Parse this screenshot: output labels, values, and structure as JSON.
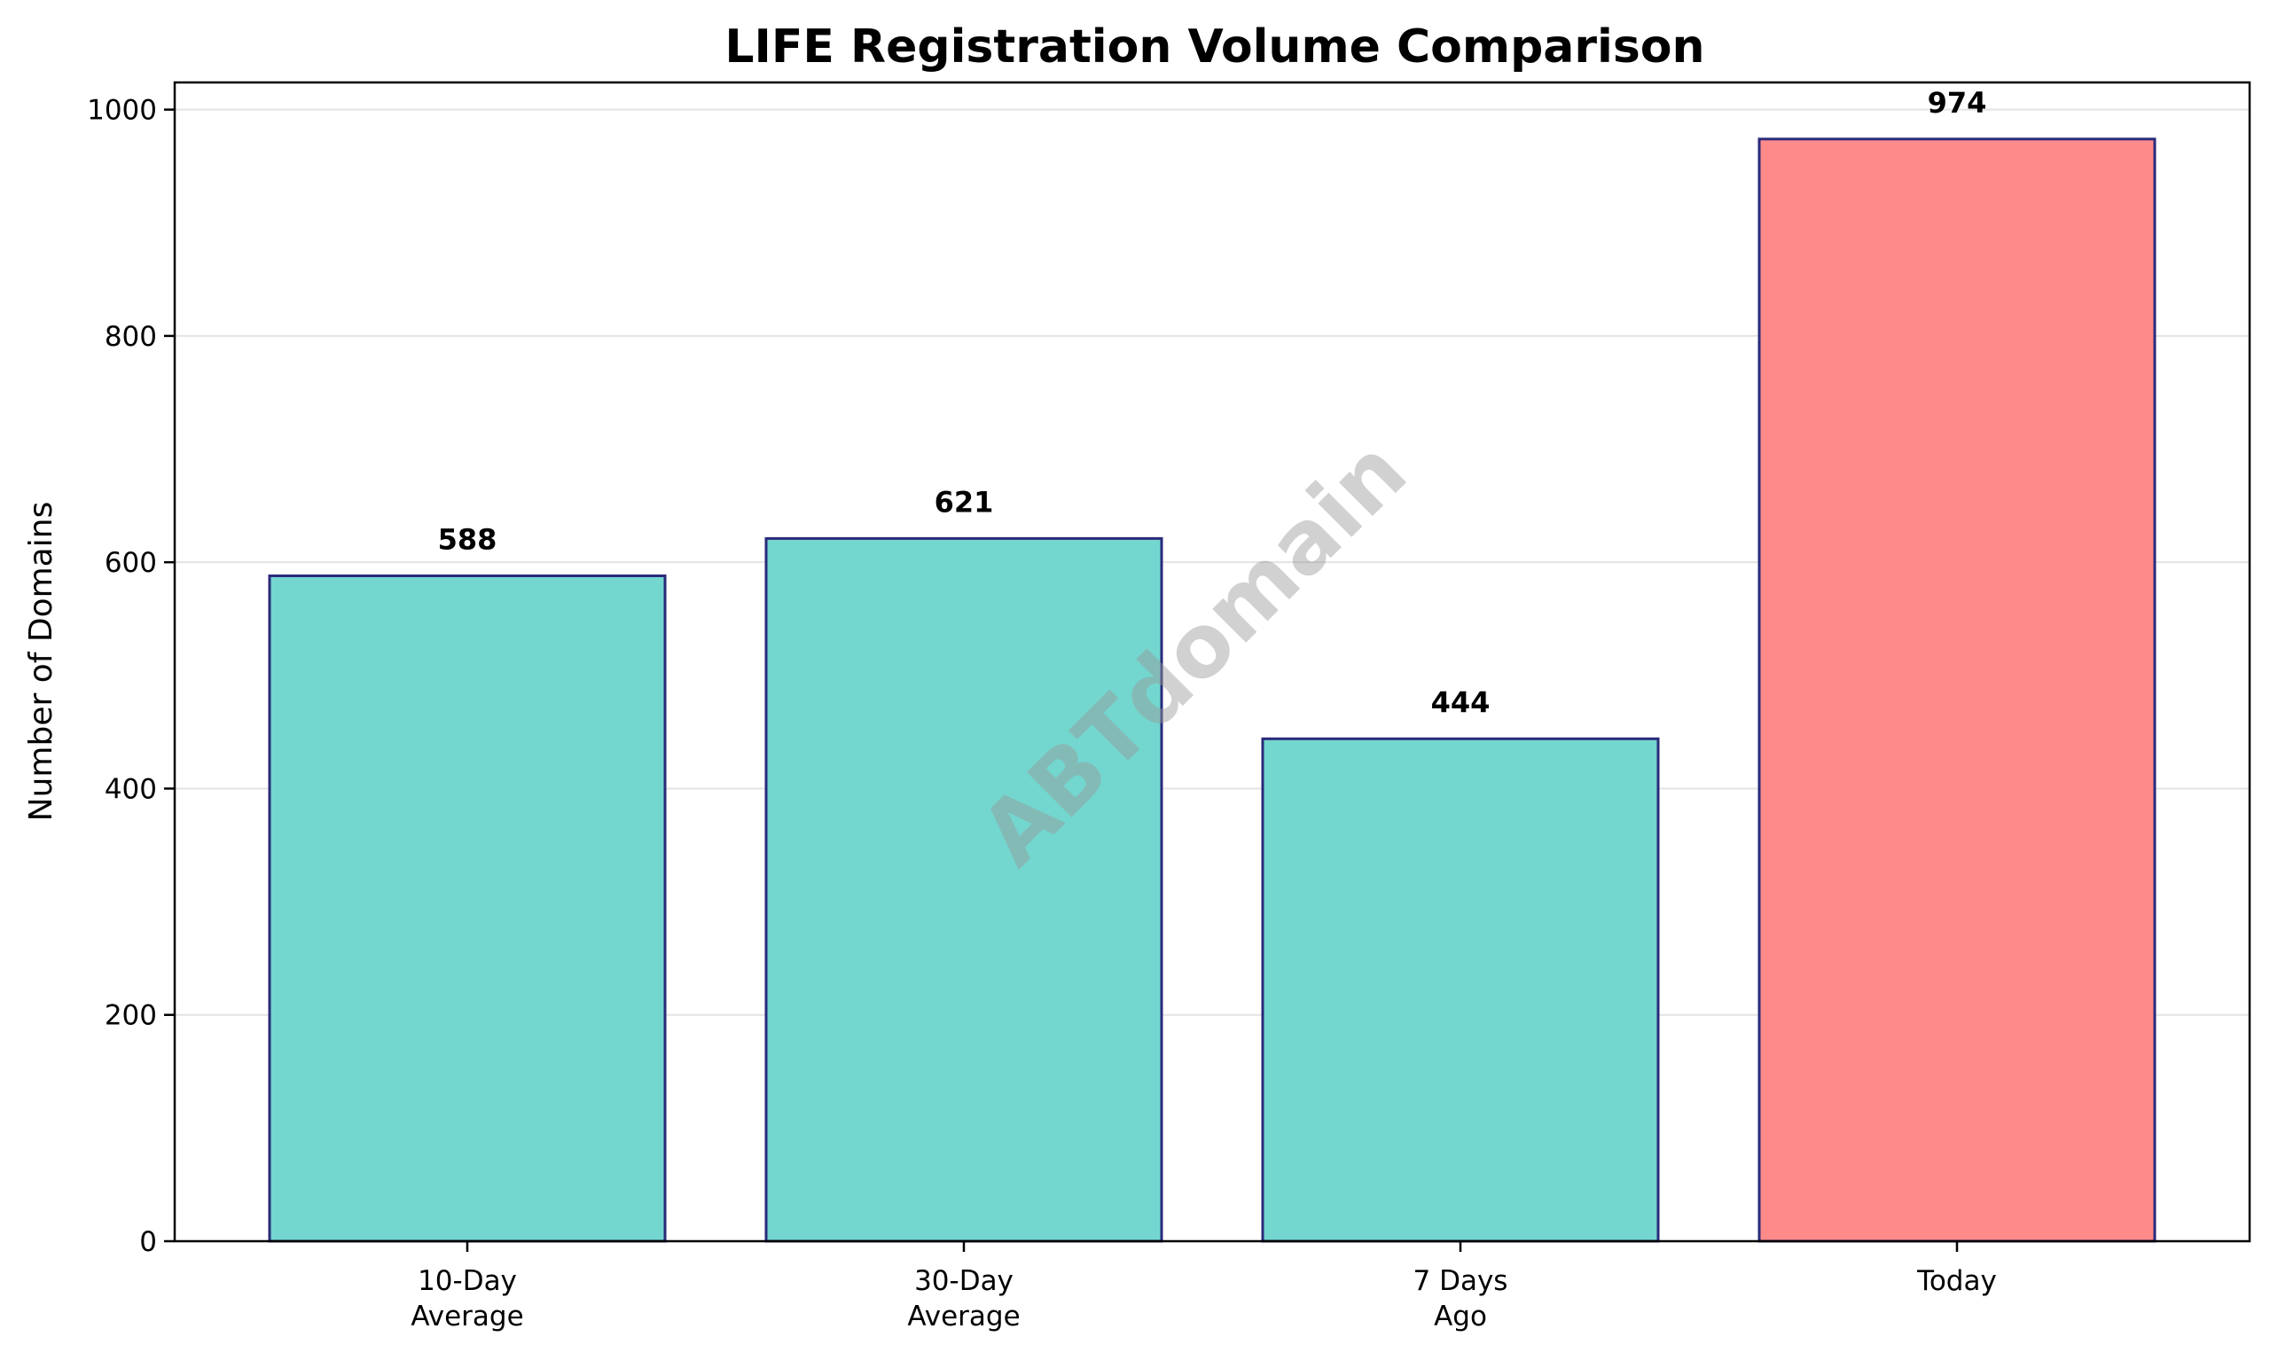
{
  "chart_data": {
    "type": "bar",
    "title": "LIFE Registration Volume Comparison",
    "xlabel": "",
    "ylabel": "Number of Domains",
    "categories": [
      [
        "10-Day",
        "Average"
      ],
      [
        "30-Day",
        "Average"
      ],
      [
        "7 Days",
        "Ago"
      ],
      [
        "Today"
      ]
    ],
    "values": [
      588,
      621,
      444,
      974
    ],
    "value_labels": [
      "588",
      "621",
      "444",
      "974"
    ],
    "bar_colors": [
      "#73d6cf",
      "#73d6cf",
      "#73d6cf",
      "#ff8a8a"
    ],
    "bar_edge_color": "#2a2a7a",
    "ylim": [
      0,
      1024
    ],
    "yticks": [
      0,
      200,
      400,
      600,
      800,
      1000
    ],
    "ytick_labels": [
      "0",
      "200",
      "400",
      "600",
      "800",
      "1000"
    ],
    "grid": "y",
    "legend": "none"
  },
  "watermark": "ABTdomain"
}
